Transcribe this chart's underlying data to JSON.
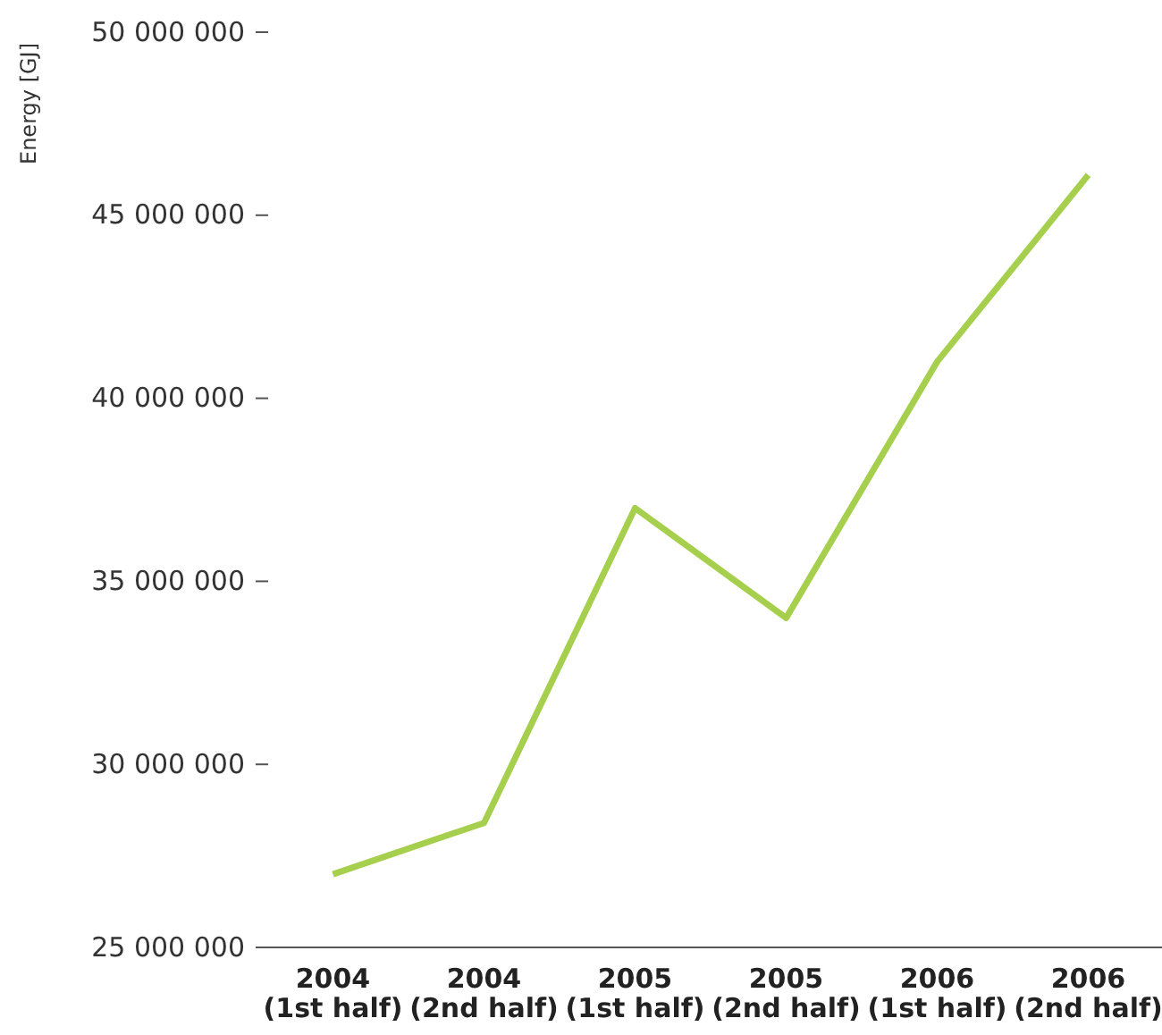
{
  "chart_data": {
    "type": "line",
    "ylabel": "Energy [GJ]",
    "categories": [
      "2004 (1st half)",
      "2004 (2nd half)",
      "2005 (1st half)",
      "2005 (2nd half)",
      "2006 (1st half)",
      "2006 (2nd half)"
    ],
    "series": [
      {
        "color": "#a5cf4c",
        "values": [
          27000000,
          28400000,
          37000000,
          34000000,
          41000000,
          46100000
        ]
      }
    ],
    "ylim": [
      25000000,
      50000000
    ],
    "yticks": [
      {
        "value": 25000000,
        "label": "25 000 000"
      },
      {
        "value": 30000000,
        "label": "30 000 000"
      },
      {
        "value": 35000000,
        "label": "35 000 000"
      },
      {
        "value": 40000000,
        "label": "40 000 000"
      },
      {
        "value": 45000000,
        "label": "45 000 000"
      },
      {
        "value": 50000000,
        "label": "50 000 000"
      }
    ],
    "grid": false,
    "marker": "none",
    "line_style": "solid"
  }
}
